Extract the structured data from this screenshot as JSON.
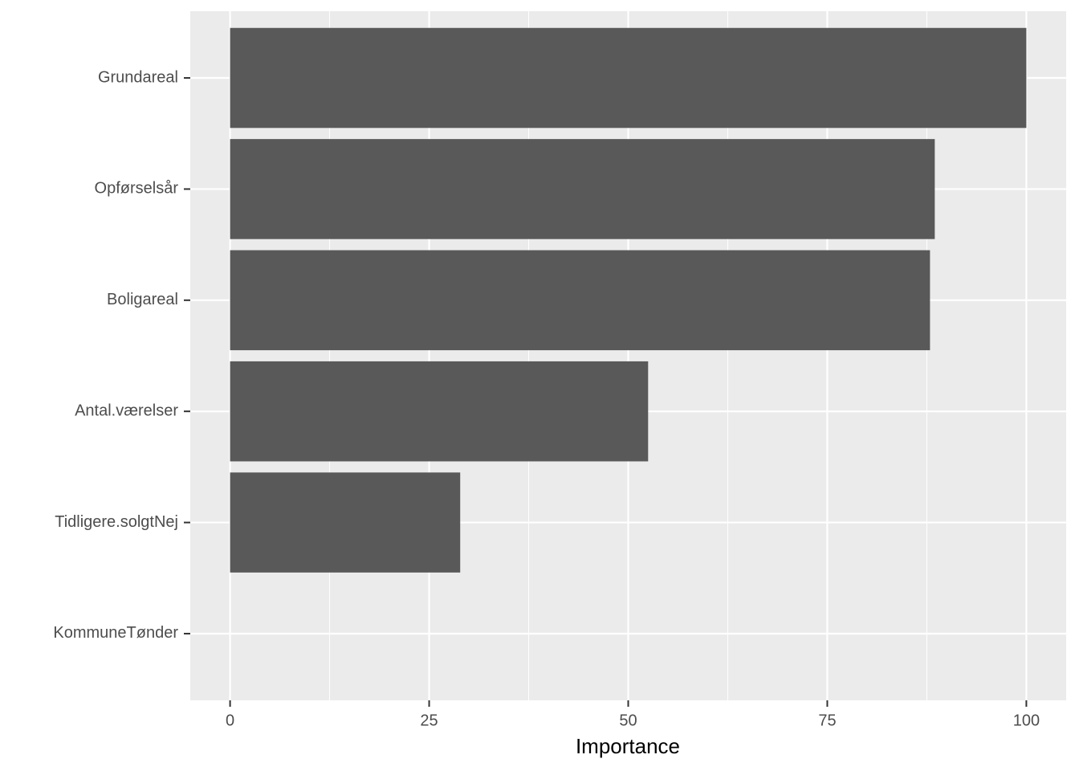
{
  "chart_data": {
    "type": "bar",
    "orientation": "horizontal",
    "x_label": "Importance",
    "categories": [
      "Grundareal",
      "Opførselsår",
      "Boligareal",
      "Antal.værelser",
      "Tidligere.solgtNej",
      "KommuneTønder"
    ],
    "values": [
      100,
      88.5,
      87.9,
      52.5,
      28.9,
      0
    ],
    "color": "#595959",
    "xlim": [
      -5,
      105
    ],
    "xticks": [
      0,
      25,
      50,
      75,
      100
    ],
    "x_minor_grid": [
      12.5,
      37.5,
      62.5,
      87.5
    ],
    "grid": true
  }
}
